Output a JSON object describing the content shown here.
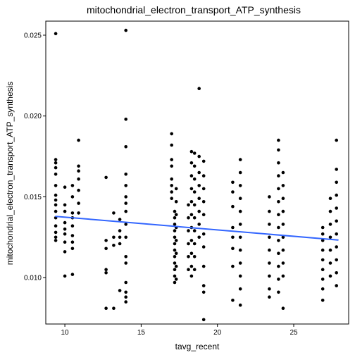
{
  "chart_data": {
    "type": "scatter",
    "title": "mitochondrial_electron_transport_ATP_synthesis",
    "xlabel": "tavg_recent",
    "ylabel": "mitochondrial_electron_transport_ATP_synthesis",
    "xlim": [
      8.75,
      28.6
    ],
    "ylim": [
      0.00713,
      0.02587
    ],
    "x_ticks": [
      10,
      15,
      20,
      25
    ],
    "x_tick_labels": [
      "10",
      "15",
      "20",
      "25"
    ],
    "y_ticks": [
      0.01,
      0.015,
      0.02,
      0.025
    ],
    "y_tick_labels": [
      "0.010",
      "0.015",
      "0.020",
      "0.025"
    ],
    "grid": false,
    "legend": "none",
    "point_color": "#000000",
    "trend_color": "#3366FF",
    "trend": {
      "x": [
        9.4,
        27.9
      ],
      "y": [
        0.01379,
        0.01233
      ]
    },
    "points": [
      {
        "x": 9.4,
        "y": 0.0251
      },
      {
        "x": 9.4,
        "y": 0.0173
      },
      {
        "x": 9.4,
        "y": 0.0171
      },
      {
        "x": 9.4,
        "y": 0.0168
      },
      {
        "x": 9.4,
        "y": 0.0164
      },
      {
        "x": 9.4,
        "y": 0.0157
      },
      {
        "x": 9.4,
        "y": 0.0151
      },
      {
        "x": 9.4,
        "y": 0.0148
      },
      {
        "x": 9.4,
        "y": 0.0145
      },
      {
        "x": 9.4,
        "y": 0.0141
      },
      {
        "x": 9.4,
        "y": 0.0137
      },
      {
        "x": 9.4,
        "y": 0.0132
      },
      {
        "x": 9.4,
        "y": 0.0128
      },
      {
        "x": 9.4,
        "y": 0.0125
      },
      {
        "x": 9.4,
        "y": 0.0123
      },
      {
        "x": 10.0,
        "y": 0.0156
      },
      {
        "x": 10.0,
        "y": 0.0145
      },
      {
        "x": 10.0,
        "y": 0.0141
      },
      {
        "x": 10.0,
        "y": 0.0134
      },
      {
        "x": 10.0,
        "y": 0.013
      },
      {
        "x": 10.0,
        "y": 0.0127
      },
      {
        "x": 10.0,
        "y": 0.0122
      },
      {
        "x": 10.0,
        "y": 0.0116
      },
      {
        "x": 10.0,
        "y": 0.0101
      },
      {
        "x": 10.5,
        "y": 0.0157
      },
      {
        "x": 10.5,
        "y": 0.015
      },
      {
        "x": 10.5,
        "y": 0.014
      },
      {
        "x": 10.5,
        "y": 0.0137
      },
      {
        "x": 10.5,
        "y": 0.0132
      },
      {
        "x": 10.5,
        "y": 0.0126
      },
      {
        "x": 10.5,
        "y": 0.0122
      },
      {
        "x": 10.5,
        "y": 0.0118
      },
      {
        "x": 10.5,
        "y": 0.0102
      },
      {
        "x": 10.9,
        "y": 0.0185
      },
      {
        "x": 10.9,
        "y": 0.0169
      },
      {
        "x": 10.9,
        "y": 0.0166
      },
      {
        "x": 10.9,
        "y": 0.0161
      },
      {
        "x": 10.9,
        "y": 0.0154
      },
      {
        "x": 10.9,
        "y": 0.0146
      },
      {
        "x": 10.9,
        "y": 0.014
      },
      {
        "x": 12.7,
        "y": 0.0162
      },
      {
        "x": 12.7,
        "y": 0.0123
      },
      {
        "x": 12.7,
        "y": 0.0118
      },
      {
        "x": 12.7,
        "y": 0.0105
      },
      {
        "x": 12.7,
        "y": 0.0103
      },
      {
        "x": 12.7,
        "y": 0.0081
      },
      {
        "x": 13.2,
        "y": 0.014
      },
      {
        "x": 13.2,
        "y": 0.0125
      },
      {
        "x": 13.2,
        "y": 0.012
      },
      {
        "x": 13.2,
        "y": 0.0081
      },
      {
        "x": 13.6,
        "y": 0.0136
      },
      {
        "x": 13.6,
        "y": 0.0129
      },
      {
        "x": 13.6,
        "y": 0.0125
      },
      {
        "x": 13.6,
        "y": 0.0121
      },
      {
        "x": 13.6,
        "y": 0.0092
      },
      {
        "x": 14.0,
        "y": 0.0253
      },
      {
        "x": 14.0,
        "y": 0.0198
      },
      {
        "x": 14.0,
        "y": 0.0181
      },
      {
        "x": 14.0,
        "y": 0.0164
      },
      {
        "x": 14.0,
        "y": 0.0157
      },
      {
        "x": 14.0,
        "y": 0.015
      },
      {
        "x": 14.0,
        "y": 0.0146
      },
      {
        "x": 14.0,
        "y": 0.0141
      },
      {
        "x": 14.0,
        "y": 0.0133
      },
      {
        "x": 14.0,
        "y": 0.0125
      },
      {
        "x": 14.0,
        "y": 0.0113
      },
      {
        "x": 14.0,
        "y": 0.0109
      },
      {
        "x": 14.0,
        "y": 0.0097
      },
      {
        "x": 14.0,
        "y": 0.0091
      },
      {
        "x": 14.0,
        "y": 0.0088
      },
      {
        "x": 14.0,
        "y": 0.0085
      },
      {
        "x": 17.0,
        "y": 0.0189
      },
      {
        "x": 17.0,
        "y": 0.0182
      },
      {
        "x": 17.0,
        "y": 0.0173
      },
      {
        "x": 17.0,
        "y": 0.0169
      },
      {
        "x": 17.0,
        "y": 0.0161
      },
      {
        "x": 17.0,
        "y": 0.0157
      },
      {
        "x": 17.0,
        "y": 0.0153
      },
      {
        "x": 17.0,
        "y": 0.0149
      },
      {
        "x": 17.2,
        "y": 0.0141
      },
      {
        "x": 17.2,
        "y": 0.0137
      },
      {
        "x": 17.2,
        "y": 0.0133
      },
      {
        "x": 17.2,
        "y": 0.0129
      },
      {
        "x": 17.2,
        "y": 0.0125
      },
      {
        "x": 17.2,
        "y": 0.0121
      },
      {
        "x": 17.2,
        "y": 0.0117
      },
      {
        "x": 17.2,
        "y": 0.0113
      },
      {
        "x": 17.2,
        "y": 0.0109
      },
      {
        "x": 17.2,
        "y": 0.0105
      },
      {
        "x": 17.2,
        "y": 0.0101
      },
      {
        "x": 17.2,
        "y": 0.0097
      },
      {
        "x": 17.3,
        "y": 0.0155
      },
      {
        "x": 17.3,
        "y": 0.0147
      },
      {
        "x": 17.3,
        "y": 0.0139
      },
      {
        "x": 17.3,
        "y": 0.0131
      },
      {
        "x": 17.3,
        "y": 0.0123
      },
      {
        "x": 17.3,
        "y": 0.0115
      },
      {
        "x": 17.3,
        "y": 0.0107
      },
      {
        "x": 17.3,
        "y": 0.0099
      },
      {
        "x": 18.1,
        "y": 0.0145
      },
      {
        "x": 18.1,
        "y": 0.0137
      },
      {
        "x": 18.1,
        "y": 0.0129
      },
      {
        "x": 18.1,
        "y": 0.0121
      },
      {
        "x": 18.1,
        "y": 0.0113
      },
      {
        "x": 18.1,
        "y": 0.0105
      },
      {
        "x": 18.3,
        "y": 0.0178
      },
      {
        "x": 18.3,
        "y": 0.0171
      },
      {
        "x": 18.3,
        "y": 0.0163
      },
      {
        "x": 18.3,
        "y": 0.0155
      },
      {
        "x": 18.3,
        "y": 0.0147
      },
      {
        "x": 18.3,
        "y": 0.0139
      },
      {
        "x": 18.3,
        "y": 0.0131
      },
      {
        "x": 18.3,
        "y": 0.0123
      },
      {
        "x": 18.3,
        "y": 0.0115
      },
      {
        "x": 18.3,
        "y": 0.0107
      },
      {
        "x": 18.3,
        "y": 0.0101
      },
      {
        "x": 18.5,
        "y": 0.0177
      },
      {
        "x": 18.5,
        "y": 0.0169
      },
      {
        "x": 18.5,
        "y": 0.0161
      },
      {
        "x": 18.5,
        "y": 0.0153
      },
      {
        "x": 18.5,
        "y": 0.0145
      },
      {
        "x": 18.5,
        "y": 0.0137
      },
      {
        "x": 18.5,
        "y": 0.0129
      },
      {
        "x": 18.5,
        "y": 0.0121
      },
      {
        "x": 18.5,
        "y": 0.0113
      },
      {
        "x": 18.5,
        "y": 0.0105
      },
      {
        "x": 18.8,
        "y": 0.0217
      },
      {
        "x": 18.8,
        "y": 0.0175
      },
      {
        "x": 18.8,
        "y": 0.0165
      },
      {
        "x": 18.8,
        "y": 0.0157
      },
      {
        "x": 18.8,
        "y": 0.0149
      },
      {
        "x": 18.8,
        "y": 0.0141
      },
      {
        "x": 18.8,
        "y": 0.0133
      },
      {
        "x": 18.8,
        "y": 0.0125
      },
      {
        "x": 19.1,
        "y": 0.0172
      },
      {
        "x": 19.1,
        "y": 0.0163
      },
      {
        "x": 19.1,
        "y": 0.0155
      },
      {
        "x": 19.1,
        "y": 0.0147
      },
      {
        "x": 19.1,
        "y": 0.0139
      },
      {
        "x": 19.1,
        "y": 0.0127
      },
      {
        "x": 19.1,
        "y": 0.0119
      },
      {
        "x": 19.1,
        "y": 0.0107
      },
      {
        "x": 19.1,
        "y": 0.0095
      },
      {
        "x": 19.1,
        "y": 0.0091
      },
      {
        "x": 19.1,
        "y": 0.0074
      },
      {
        "x": 21.0,
        "y": 0.0159
      },
      {
        "x": 21.0,
        "y": 0.0153
      },
      {
        "x": 21.0,
        "y": 0.0144
      },
      {
        "x": 21.0,
        "y": 0.0131
      },
      {
        "x": 21.0,
        "y": 0.0125
      },
      {
        "x": 21.0,
        "y": 0.0118
      },
      {
        "x": 21.0,
        "y": 0.0107
      },
      {
        "x": 21.0,
        "y": 0.0086
      },
      {
        "x": 21.5,
        "y": 0.0173
      },
      {
        "x": 21.5,
        "y": 0.0165
      },
      {
        "x": 21.5,
        "y": 0.0157
      },
      {
        "x": 21.5,
        "y": 0.0149
      },
      {
        "x": 21.5,
        "y": 0.0141
      },
      {
        "x": 21.5,
        "y": 0.0133
      },
      {
        "x": 21.5,
        "y": 0.0125
      },
      {
        "x": 21.5,
        "y": 0.0117
      },
      {
        "x": 21.5,
        "y": 0.0109
      },
      {
        "x": 21.5,
        "y": 0.0101
      },
      {
        "x": 21.5,
        "y": 0.0093
      },
      {
        "x": 21.5,
        "y": 0.0083
      },
      {
        "x": 23.4,
        "y": 0.015
      },
      {
        "x": 23.4,
        "y": 0.0141
      },
      {
        "x": 23.4,
        "y": 0.0133
      },
      {
        "x": 23.4,
        "y": 0.0125
      },
      {
        "x": 23.4,
        "y": 0.0117
      },
      {
        "x": 23.4,
        "y": 0.0109
      },
      {
        "x": 23.4,
        "y": 0.0101
      },
      {
        "x": 23.4,
        "y": 0.0093
      },
      {
        "x": 23.4,
        "y": 0.0088
      },
      {
        "x": 24.0,
        "y": 0.0185
      },
      {
        "x": 24.0,
        "y": 0.0179
      },
      {
        "x": 24.0,
        "y": 0.0171
      },
      {
        "x": 24.0,
        "y": 0.0163
      },
      {
        "x": 24.0,
        "y": 0.0155
      },
      {
        "x": 24.0,
        "y": 0.0147
      },
      {
        "x": 24.0,
        "y": 0.0139
      },
      {
        "x": 24.0,
        "y": 0.0131
      },
      {
        "x": 24.0,
        "y": 0.0123
      },
      {
        "x": 24.0,
        "y": 0.0115
      },
      {
        "x": 24.0,
        "y": 0.0107
      },
      {
        "x": 24.0,
        "y": 0.0099
      },
      {
        "x": 24.0,
        "y": 0.0091
      },
      {
        "x": 24.3,
        "y": 0.0165
      },
      {
        "x": 24.3,
        "y": 0.0157
      },
      {
        "x": 24.3,
        "y": 0.0149
      },
      {
        "x": 24.3,
        "y": 0.0141
      },
      {
        "x": 24.3,
        "y": 0.0133
      },
      {
        "x": 24.3,
        "y": 0.0125
      },
      {
        "x": 24.3,
        "y": 0.0117
      },
      {
        "x": 24.3,
        "y": 0.0109
      },
      {
        "x": 24.3,
        "y": 0.0101
      },
      {
        "x": 24.3,
        "y": 0.0081
      },
      {
        "x": 26.9,
        "y": 0.0131
      },
      {
        "x": 26.9,
        "y": 0.0127
      },
      {
        "x": 26.9,
        "y": 0.0123
      },
      {
        "x": 26.9,
        "y": 0.0117
      },
      {
        "x": 26.9,
        "y": 0.0111
      },
      {
        "x": 26.9,
        "y": 0.0105
      },
      {
        "x": 26.9,
        "y": 0.0099
      },
      {
        "x": 26.9,
        "y": 0.0093
      },
      {
        "x": 26.9,
        "y": 0.0086
      },
      {
        "x": 27.4,
        "y": 0.0149
      },
      {
        "x": 27.4,
        "y": 0.0141
      },
      {
        "x": 27.4,
        "y": 0.0133
      },
      {
        "x": 27.4,
        "y": 0.0125
      },
      {
        "x": 27.4,
        "y": 0.0117
      },
      {
        "x": 27.4,
        "y": 0.0109
      },
      {
        "x": 27.4,
        "y": 0.0101
      },
      {
        "x": 27.8,
        "y": 0.0185
      },
      {
        "x": 27.8,
        "y": 0.0167
      },
      {
        "x": 27.8,
        "y": 0.0159
      },
      {
        "x": 27.8,
        "y": 0.0151
      },
      {
        "x": 27.8,
        "y": 0.0143
      },
      {
        "x": 27.8,
        "y": 0.0135
      },
      {
        "x": 27.8,
        "y": 0.0127
      },
      {
        "x": 27.8,
        "y": 0.0119
      },
      {
        "x": 27.8,
        "y": 0.0111
      },
      {
        "x": 27.8,
        "y": 0.0103
      },
      {
        "x": 27.8,
        "y": 0.0095
      }
    ]
  }
}
